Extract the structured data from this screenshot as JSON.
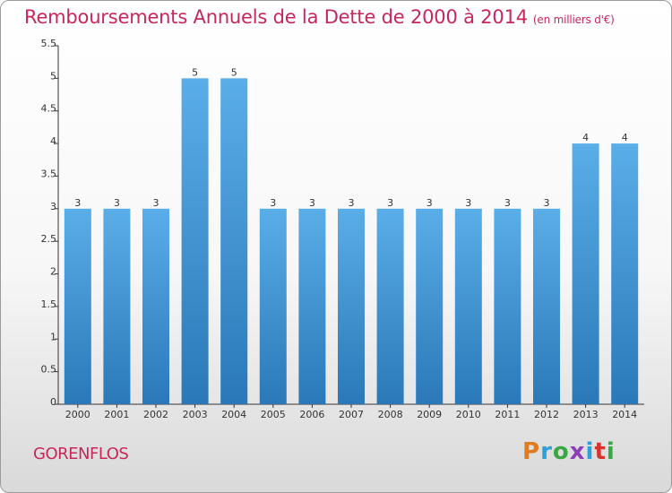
{
  "header": {
    "title": "Remboursements Annuels de la Dette de 2000 à 2014",
    "subtitle": "(en milliers d'€)"
  },
  "footer": {
    "place": "GORENFLOS",
    "logo_text": "Proxiti",
    "logo_colors": [
      "#e07b1f",
      "#2f9fd8",
      "#3aa842",
      "#8b3fb5",
      "#2f9fd8",
      "#d9342b",
      "#3aa842"
    ]
  },
  "colors": {
    "bar_top": "#5aaee8",
    "bar_bottom": "#2a78b8",
    "axis": "#333333",
    "title": "#c8275a"
  },
  "chart_data": {
    "type": "bar",
    "title": "Remboursements Annuels de la Dette de 2000 à 2014",
    "subtitle": "(en milliers d'€)",
    "categories": [
      "2000",
      "2001",
      "2002",
      "2003",
      "2004",
      "2005",
      "2006",
      "2007",
      "2008",
      "2009",
      "2010",
      "2011",
      "2012",
      "2013",
      "2014"
    ],
    "values": [
      3,
      3,
      3,
      5,
      5,
      3,
      3,
      3,
      3,
      3,
      3,
      3,
      3,
      4,
      4
    ],
    "data_labels": [
      "3",
      "3",
      "3",
      "5",
      "5",
      "3",
      "3",
      "3",
      "3",
      "3",
      "3",
      "3",
      "3",
      "4",
      "4"
    ],
    "ylim": [
      0,
      5.5
    ],
    "yticks": [
      0,
      0.5,
      1,
      1.5,
      2,
      2.5,
      3,
      3.5,
      4,
      4.5,
      5,
      5.5
    ],
    "ytick_labels": [
      "0",
      "0.5",
      "1",
      "1.5",
      "2",
      "2.5",
      "3",
      "3.5",
      "4",
      "4.5",
      "5",
      "5.5"
    ],
    "grid": false,
    "legend": "none"
  }
}
